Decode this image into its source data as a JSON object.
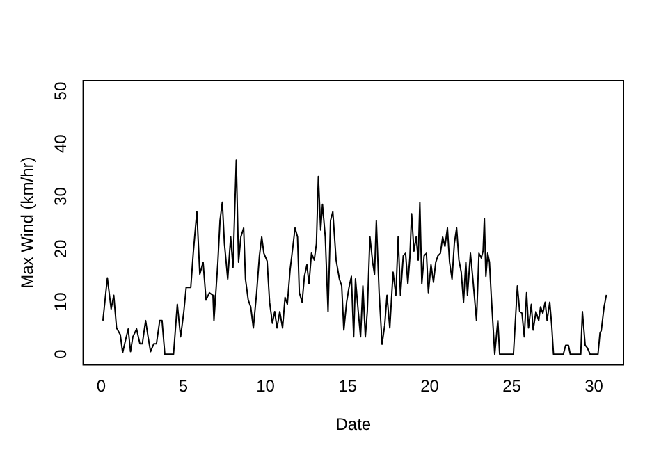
{
  "chart_data": {
    "type": "line",
    "xlabel": "Date",
    "ylabel": "Max Wind (km/hr)",
    "xlim": [
      -1.1,
      31.8
    ],
    "ylim": [
      -2,
      52
    ],
    "xticks": [
      0,
      5,
      10,
      15,
      20,
      25,
      30
    ],
    "yticks": [
      0,
      10,
      20,
      30,
      40,
      50
    ],
    "grid": false,
    "legend": false,
    "marker": "none",
    "line_style": "solid",
    "series": [
      {
        "color": "#000000",
        "x": [
          0.1,
          0.37,
          0.6,
          0.76,
          0.93,
          1.16,
          1.3,
          1.5,
          1.64,
          1.78,
          1.92,
          2.15,
          2.35,
          2.5,
          2.7,
          2.85,
          3.0,
          3.2,
          3.36,
          3.56,
          3.7,
          3.87,
          4.4,
          4.63,
          4.83,
          5.03,
          5.17,
          5.45,
          5.6,
          5.82,
          6.0,
          6.2,
          6.38,
          6.58,
          6.8,
          6.86,
          7.1,
          7.23,
          7.37,
          7.5,
          7.7,
          7.88,
          8.02,
          8.22,
          8.36,
          8.5,
          8.67,
          8.78,
          8.95,
          9.1,
          9.26,
          9.46,
          9.63,
          9.77,
          9.9,
          10.1,
          10.25,
          10.42,
          10.56,
          10.7,
          10.87,
          11.04,
          11.19,
          11.33,
          11.5,
          11.67,
          11.8,
          11.95,
          12.06,
          12.23,
          12.37,
          12.52,
          12.65,
          12.8,
          12.97,
          13.1,
          13.22,
          13.36,
          13.47,
          13.64,
          13.81,
          13.96,
          14.1,
          14.3,
          14.5,
          14.64,
          14.77,
          14.94,
          15.08,
          15.23,
          15.37,
          15.48,
          15.65,
          15.79,
          15.93,
          16.08,
          16.2,
          16.36,
          16.53,
          16.64,
          16.75,
          16.92,
          17.1,
          17.26,
          17.4,
          17.57,
          17.77,
          17.94,
          18.08,
          18.22,
          18.39,
          18.53,
          18.67,
          18.79,
          18.9,
          19.04,
          19.18,
          19.3,
          19.4,
          19.52,
          19.66,
          19.8,
          19.92,
          20.08,
          20.23,
          20.37,
          20.5,
          20.65,
          20.79,
          20.93,
          21.08,
          21.21,
          21.36,
          21.5,
          21.64,
          21.78,
          21.92,
          22.06,
          22.2,
          22.3,
          22.48,
          22.63,
          22.85,
          23.0,
          23.14,
          23.25,
          23.33,
          23.42,
          23.53,
          23.64,
          23.75,
          23.96,
          24.15,
          24.26,
          25.1,
          25.34,
          25.48,
          25.62,
          25.76,
          25.9,
          26.02,
          26.19,
          26.3,
          26.47,
          26.64,
          26.75,
          26.89,
          27.03,
          27.15,
          27.31,
          27.43,
          27.54,
          28.14,
          28.28,
          28.45,
          28.56,
          29.2,
          29.3,
          29.47,
          29.6,
          29.77,
          30.25,
          30.37,
          30.45,
          30.62,
          30.76
        ],
        "values": [
          6.4,
          14.5,
          8.6,
          11.2,
          5,
          3.7,
          0.3,
          3,
          4.8,
          0.5,
          3.3,
          4.8,
          2,
          2,
          6.4,
          3.3,
          0.5,
          2,
          2,
          6.4,
          6.4,
          0,
          0,
          9.5,
          3.3,
          8.2,
          12.7,
          12.7,
          19.2,
          27.1,
          15.2,
          17.5,
          10.3,
          11.7,
          11.2,
          6.4,
          17.5,
          25.4,
          28.9,
          21,
          14.3,
          22.3,
          16.5,
          36.9,
          17.5,
          22.3,
          24,
          14.3,
          10.3,
          9,
          5,
          11.7,
          18.7,
          22.3,
          19.2,
          17.7,
          9.9,
          5.9,
          8.1,
          5,
          8.1,
          5,
          10.8,
          9.5,
          16.1,
          20.5,
          24,
          22.3,
          11.7,
          9.9,
          14.8,
          17,
          13.4,
          19.2,
          17.9,
          21,
          33.8,
          23.6,
          28.5,
          22.3,
          8.1,
          25.4,
          27.1,
          17.9,
          14.3,
          13,
          4.6,
          9.9,
          12.6,
          14.8,
          3.3,
          14.3,
          8.1,
          3.3,
          13,
          3.3,
          8.1,
          22.3,
          17.4,
          15.2,
          25.4,
          11.7,
          1.9,
          5.5,
          11.2,
          5,
          15.6,
          11.2,
          22.3,
          11.2,
          18.7,
          19.2,
          13.4,
          18.3,
          26.7,
          19.6,
          22.3,
          17.9,
          28.9,
          13.4,
          18.7,
          19.2,
          11.7,
          17,
          13.7,
          17.5,
          18.7,
          19.2,
          22.3,
          20.5,
          24,
          17.5,
          14.3,
          21,
          24,
          17.9,
          15.6,
          9.9,
          17.5,
          11.2,
          19.2,
          14.3,
          6.4,
          19.2,
          18.3,
          19.6,
          25.8,
          14.8,
          19.2,
          17.5,
          11,
          0,
          6.4,
          0,
          0,
          13,
          8.1,
          7.8,
          3.3,
          11.7,
          5,
          9.5,
          4.6,
          8.1,
          6.4,
          9,
          7.8,
          9.9,
          6.4,
          9.9,
          5.5,
          0,
          0,
          1.7,
          1.7,
          0,
          0,
          8.1,
          1.7,
          1.2,
          0,
          0,
          4,
          4.5,
          9,
          11.3
        ]
      }
    ]
  }
}
